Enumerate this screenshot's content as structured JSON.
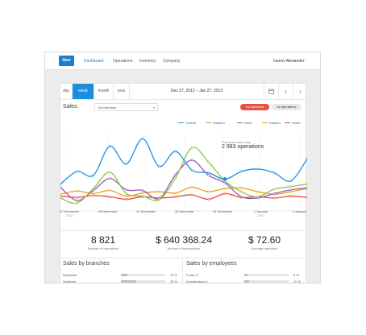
{
  "topnav": {
    "logo": "ibox",
    "items": [
      "Dashboard",
      "Operations",
      "Inventory",
      "Company"
    ],
    "user": "Ivanov Alexander"
  },
  "toolbar": {
    "segments": [
      "day",
      "week",
      "month",
      "year"
    ],
    "date_range": "Dec 27, 2012 – Jan 27, 2013"
  },
  "sales": {
    "label": "Sales:",
    "select_value": "All branches",
    "by_branches": "by branches",
    "by_operations": "by operations"
  },
  "chart_data": {
    "type": "line",
    "legend_position": "top-right",
    "series": [
      {
        "name": "Central",
        "color": "#1a8fe0",
        "values": [
          40,
          60,
          54,
          100,
          72,
          112,
          68,
          92,
          62,
          58,
          48,
          60,
          64,
          58,
          45,
          80
        ]
      },
      {
        "name": "Western",
        "color": "#8cc63f",
        "values": [
          18,
          10,
          33,
          59,
          25,
          21,
          15,
          50,
          98,
          75,
          45,
          28,
          20,
          32,
          36,
          40
        ]
      },
      {
        "name": "North",
        "color": "#9b59b6",
        "values": [
          35,
          14,
          30,
          49,
          31,
          30,
          17,
          55,
          78,
          54,
          42,
          20,
          18,
          25,
          31,
          34
        ]
      },
      {
        "name": "Eastern",
        "color": "#f39c12",
        "values": [
          24,
          29,
          25,
          30,
          21,
          26,
          28,
          26,
          35,
          28,
          33,
          34,
          28,
          24,
          28,
          33
        ]
      },
      {
        "name": "South",
        "color": "#e74c3c",
        "values": [
          21,
          19,
          22,
          20,
          16,
          20,
          18,
          20,
          23,
          16,
          25,
          19,
          20,
          18,
          21,
          19
        ]
      }
    ],
    "x_ticks": [
      {
        "label": "27 December",
        "sub": "2012"
      },
      {
        "label": "29 December",
        "sub": ""
      },
      {
        "label": "31 December",
        "sub": ""
      },
      {
        "label": "30 December",
        "sub": ""
      },
      {
        "label": "31 December",
        "sub": ""
      },
      {
        "label": "1 January",
        "sub": "2013"
      },
      {
        "label": "2 January",
        "sub": ""
      }
    ],
    "highlight_index": 10,
    "annotation_label": "The most active day",
    "annotation_value": "2 983 operations"
  },
  "stats": [
    {
      "value": "8 821",
      "label": "Number of operations"
    },
    {
      "value": "$ 640 368.24",
      "label": "Amount of transactions"
    },
    {
      "value": "$ 72.60",
      "label": "Average operation"
    }
  ],
  "branches": {
    "title": "Sales by branches",
    "rows": [
      {
        "name": "Northeast",
        "pct": "15 %",
        "fill": 0.15
      },
      {
        "name": "Southern",
        "pct": "35 %",
        "fill": 0.35
      }
    ]
  },
  "employees": {
    "title": "Sales by employees",
    "rows": [
      {
        "name": "Frolov P.",
        "pct": "8 %",
        "fill": 0.08
      },
      {
        "name": "Konstantinov A.",
        "pct": "11 %",
        "fill": 0.11
      }
    ]
  }
}
